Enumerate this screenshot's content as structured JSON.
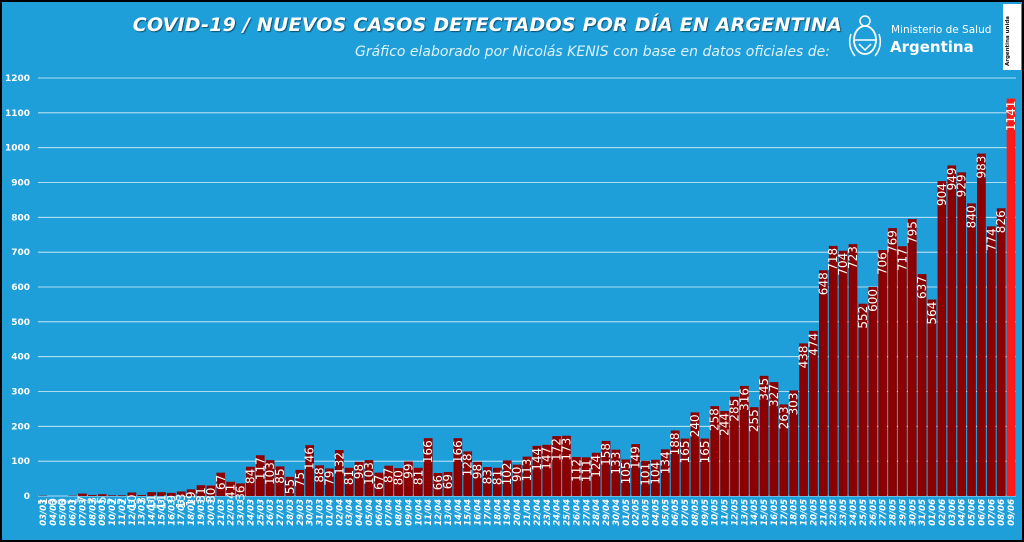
{
  "header": {
    "title": "COVID-19  /  NUEVOS CASOS DETECTADOS POR DÍA EN ARGENTINA",
    "subtitle": "Gráfico elaborado por Nicolás KENIS con base en datos oficiales de:",
    "logo_ministry": "Ministerio de Salud",
    "logo_country": "Argentina",
    "badge": "Argentina unida"
  },
  "colors": {
    "background": "#1f9fd9",
    "bar": "#8b0000",
    "bar_last": "#ff1a1a",
    "gridline": "#ffffff"
  },
  "chart_data": {
    "type": "bar",
    "title": "COVID-19  /  NUEVOS CASOS DETECTADOS POR DÍA EN ARGENTINA",
    "ylim": [
      0,
      1200
    ],
    "yticks": [
      0,
      100,
      200,
      300,
      400,
      500,
      600,
      700,
      800,
      900,
      1000,
      1100,
      1200
    ],
    "grid": true,
    "highlight_last": true,
    "categories": [
      "03/03",
      "04/03",
      "05/03",
      "06/03",
      "07/03",
      "08/03",
      "09/03",
      "10/03",
      "11/03",
      "12/03",
      "13/03",
      "14/03",
      "15/03",
      "16/03",
      "17/03",
      "18/03",
      "19/03",
      "20/03",
      "21/03",
      "22/03",
      "23/03",
      "24/03",
      "25/03",
      "26/03",
      "27/03",
      "28/03",
      "29/03",
      "30/03",
      "31/03",
      "01/04",
      "02/04",
      "03/04",
      "04/04",
      "05/04",
      "06/04",
      "07/04",
      "08/04",
      "09/04",
      "10/04",
      "11/04",
      "12/04",
      "13/04",
      "14/04",
      "15/04",
      "16/04",
      "17/04",
      "18/04",
      "19/04",
      "20/04",
      "21/04",
      "22/04",
      "23/04",
      "24/04",
      "25/04",
      "26/04",
      "27/04",
      "28/04",
      "29/04",
      "30/04",
      "01/05",
      "02/05",
      "03/05",
      "04/05",
      "05/05",
      "06/05",
      "07/05",
      "08/05",
      "09/05",
      "10/05",
      "11/05",
      "12/05",
      "13/05",
      "14/05",
      "15/05",
      "16/05",
      "17/05",
      "18/05",
      "19/05",
      "20/05",
      "21/05",
      "22/05",
      "23/05",
      "24/05",
      "25/05",
      "26/05",
      "27/05",
      "28/05",
      "29/05",
      "30/05",
      "31/05",
      "01/06",
      "02/06",
      "03/06",
      "04/06",
      "05/06",
      "06/06",
      "07/06",
      "08/06",
      "09/06"
    ],
    "values": [
      1,
      0,
      0,
      1,
      7,
      3,
      5,
      2,
      2,
      10,
      3,
      11,
      11,
      9,
      13,
      19,
      31,
      30,
      67,
      41,
      36,
      84,
      117,
      103,
      85,
      55,
      75,
      146,
      88,
      79,
      132,
      81,
      98,
      103,
      67,
      87,
      80,
      99,
      81,
      166,
      66,
      69,
      166,
      128,
      98,
      83,
      81,
      102,
      90,
      113,
      144,
      147,
      172,
      173,
      112,
      111,
      124,
      158,
      133,
      105,
      149,
      101,
      104,
      134,
      188,
      165,
      240,
      165,
      258,
      244,
      285,
      316,
      255,
      345,
      327,
      263,
      303,
      438,
      474,
      648,
      718,
      704,
      723,
      552,
      600,
      706,
      769,
      717,
      795,
      637,
      564,
      904,
      949,
      929,
      840,
      983,
      774,
      826,
      1141
    ]
  }
}
